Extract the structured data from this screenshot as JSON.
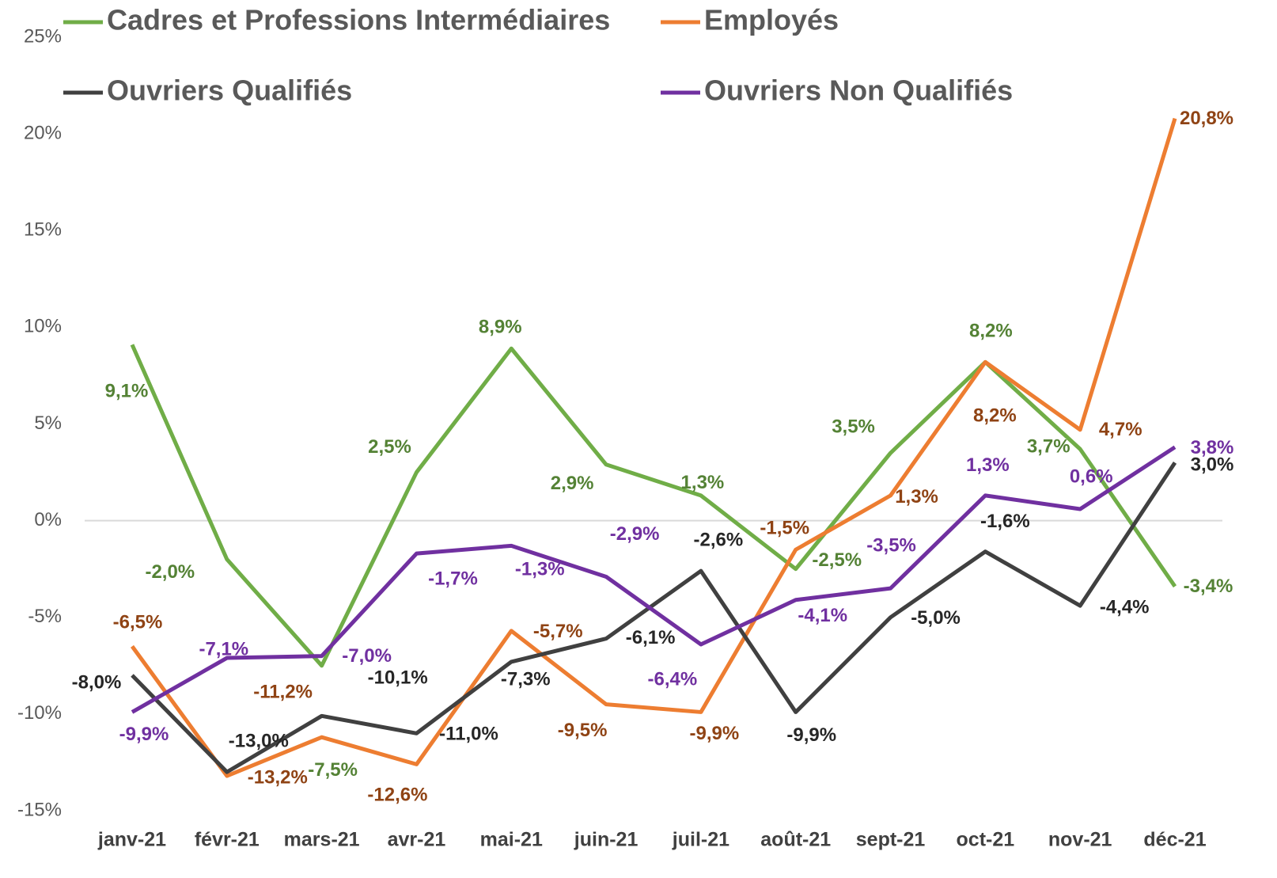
{
  "chart_data": {
    "type": "line",
    "categories": [
      "janv-21",
      "févr-21",
      "mars-21",
      "avr-21",
      "mai-21",
      "juin-21",
      "juil-21",
      "août-21",
      "sept-21",
      "oct-21",
      "nov-21",
      "déc-21"
    ],
    "ylim": [
      -15,
      25
    ],
    "yticks": [
      {
        "value": -15,
        "label": "-15%"
      },
      {
        "value": -10,
        "label": "-10%"
      },
      {
        "value": -5,
        "label": "-5%"
      },
      {
        "value": 0,
        "label": "0%"
      },
      {
        "value": 5,
        "label": "5%"
      },
      {
        "value": 10,
        "label": "10%"
      },
      {
        "value": 15,
        "label": "15%"
      },
      {
        "value": 20,
        "label": "20%"
      },
      {
        "value": 25,
        "label": "25%"
      }
    ],
    "grid": false,
    "series": [
      {
        "name": "Cadres et Professions Intermédiaires",
        "color": "#70ad47",
        "label_color": "#548235",
        "values": [
          9.1,
          -2.0,
          -7.5,
          2.5,
          8.9,
          2.9,
          1.3,
          -2.5,
          3.5,
          8.2,
          3.7,
          -3.4
        ],
        "value_labels": [
          "9,1%",
          "-2,0%",
          "-7,5%",
          "2,5%",
          "8,9%",
          "2,9%",
          "1,3%",
          "-2,5%",
          "3,5%",
          "8,2%",
          "3,7%",
          "-3,4%"
        ]
      },
      {
        "name": "Employés",
        "color": "#ed7d31",
        "label_color": "#8f4314",
        "values": [
          -6.5,
          -13.2,
          -11.2,
          -12.6,
          -5.7,
          -9.5,
          -9.9,
          -1.5,
          1.3,
          8.2,
          4.7,
          20.8
        ],
        "value_labels": [
          "-6,5%",
          "-13,2%",
          "-11,2%",
          "-12,6%",
          "-5,7%",
          "-9,5%",
          "-9,9%",
          "-1,5%",
          "1,3%",
          "8,2%",
          "4,7%",
          "20,8%"
        ]
      },
      {
        "name": "Ouvriers Qualifiés",
        "color": "#404040",
        "label_color": "#262626",
        "values": [
          -8.0,
          -13.0,
          -10.1,
          -11.0,
          -7.3,
          -6.1,
          -2.6,
          -9.9,
          -5.0,
          -1.6,
          -4.4,
          3.0
        ],
        "value_labels": [
          "-8,0%",
          "-13,0%",
          "-10,1%",
          "-11,0%",
          "-7,3%",
          "-6,1%",
          "-2,6%",
          "-9,9%",
          "-5,0%",
          "-1,6%",
          "-4,4%",
          "3,0%"
        ]
      },
      {
        "name": "Ouvriers Non Qualifiés",
        "color": "#7030a0",
        "label_color": "#7030a0",
        "values": [
          -9.9,
          -7.1,
          -7.0,
          -1.7,
          -1.3,
          -2.9,
          -6.4,
          -4.1,
          -3.5,
          1.3,
          0.6,
          3.8
        ],
        "value_labels": [
          "-9,9%",
          "-7,1%",
          "-7,0%",
          "-1,7%",
          "-1,3%",
          "-2,9%",
          "-6,4%",
          "-4,1%",
          "-3,5%",
          "1,3%",
          "0,6%",
          "3,8%"
        ]
      }
    ]
  }
}
